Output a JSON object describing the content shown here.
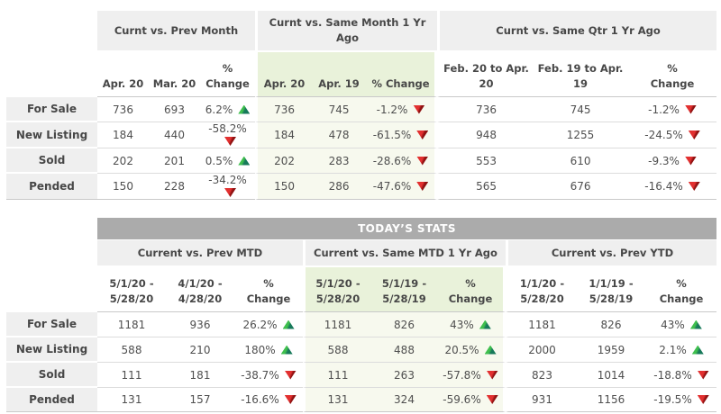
{
  "colors": {
    "group_header_bg": "#efefef",
    "highlight_header_bg": "#e9f2da",
    "highlight_cell_bg": "#f7f9ee",
    "stats_bar_bg": "#ababab",
    "up_arrow": "#2fa84f",
    "down_arrow": "#c32222",
    "text": "#4f4f4f"
  },
  "table1": {
    "groups": [
      {
        "title": "Curnt vs. Prev Month",
        "columns": [
          "Apr. 20",
          "Mar. 20",
          "%\nChange"
        ],
        "highlight": false
      },
      {
        "title": "Curnt vs. Same Month 1 Yr\nAgo",
        "columns": [
          "Apr. 20",
          "Apr. 19",
          "% Change"
        ],
        "highlight": true
      },
      {
        "title": "Curnt vs. Same Qtr 1 Yr Ago",
        "columns": [
          "Feb. 20 to Apr.\n20",
          "Feb. 19 to Apr.\n19",
          "%\nChange"
        ],
        "highlight": false
      }
    ],
    "rows": [
      {
        "label": "For Sale",
        "cells": [
          {
            "v": "736"
          },
          {
            "v": "693"
          },
          {
            "v": "6.2%",
            "dir": "up"
          },
          {
            "v": "736"
          },
          {
            "v": "745"
          },
          {
            "v": "-1.2%",
            "dir": "down"
          },
          {
            "v": "736"
          },
          {
            "v": "745"
          },
          {
            "v": "-1.2%",
            "dir": "down"
          }
        ]
      },
      {
        "label": "New Listing",
        "cells": [
          {
            "v": "184"
          },
          {
            "v": "440"
          },
          {
            "v": "-58.2%",
            "dir": "down"
          },
          {
            "v": "184"
          },
          {
            "v": "478"
          },
          {
            "v": "-61.5%",
            "dir": "down"
          },
          {
            "v": "948"
          },
          {
            "v": "1255"
          },
          {
            "v": "-24.5%",
            "dir": "down"
          }
        ]
      },
      {
        "label": "Sold",
        "cells": [
          {
            "v": "202"
          },
          {
            "v": "201"
          },
          {
            "v": "0.5%",
            "dir": "up"
          },
          {
            "v": "202"
          },
          {
            "v": "283"
          },
          {
            "v": "-28.6%",
            "dir": "down"
          },
          {
            "v": "553"
          },
          {
            "v": "610"
          },
          {
            "v": "-9.3%",
            "dir": "down"
          }
        ]
      },
      {
        "label": "Pended",
        "cells": [
          {
            "v": "150"
          },
          {
            "v": "228"
          },
          {
            "v": "-34.2%",
            "dir": "down"
          },
          {
            "v": "150"
          },
          {
            "v": "286"
          },
          {
            "v": "-47.6%",
            "dir": "down"
          },
          {
            "v": "565"
          },
          {
            "v": "676"
          },
          {
            "v": "-16.4%",
            "dir": "down"
          }
        ]
      }
    ]
  },
  "table2": {
    "title": "TODAY’S STATS",
    "groups": [
      {
        "title": "Current vs. Prev MTD",
        "columns": [
          "5/1/20 -\n5/28/20",
          "4/1/20 -\n4/28/20",
          "%\nChange"
        ],
        "highlight": false
      },
      {
        "title": "Current vs. Same MTD 1 Yr Ago",
        "columns": [
          "5/1/20 -\n5/28/20",
          "5/1/19 -\n5/28/19",
          "%\nChange"
        ],
        "highlight": true
      },
      {
        "title": "Current vs. Prev YTD",
        "columns": [
          "1/1/20 -\n5/28/20",
          "1/1/19 -\n5/28/19",
          "%\nChange"
        ],
        "highlight": false
      }
    ],
    "rows": [
      {
        "label": "For Sale",
        "cells": [
          {
            "v": "1181"
          },
          {
            "v": "936"
          },
          {
            "v": "26.2%",
            "dir": "up"
          },
          {
            "v": "1181"
          },
          {
            "v": "826"
          },
          {
            "v": "43%",
            "dir": "up"
          },
          {
            "v": "1181"
          },
          {
            "v": "826"
          },
          {
            "v": "43%",
            "dir": "up"
          }
        ]
      },
      {
        "label": "New Listing",
        "cells": [
          {
            "v": "588"
          },
          {
            "v": "210"
          },
          {
            "v": "180%",
            "dir": "up"
          },
          {
            "v": "588"
          },
          {
            "v": "488"
          },
          {
            "v": "20.5%",
            "dir": "up"
          },
          {
            "v": "2000"
          },
          {
            "v": "1959"
          },
          {
            "v": "2.1%",
            "dir": "up"
          }
        ]
      },
      {
        "label": "Sold",
        "cells": [
          {
            "v": "111"
          },
          {
            "v": "181"
          },
          {
            "v": "-38.7%",
            "dir": "down"
          },
          {
            "v": "111"
          },
          {
            "v": "263"
          },
          {
            "v": "-57.8%",
            "dir": "down"
          },
          {
            "v": "823"
          },
          {
            "v": "1014"
          },
          {
            "v": "-18.8%",
            "dir": "down"
          }
        ]
      },
      {
        "label": "Pended",
        "cells": [
          {
            "v": "131"
          },
          {
            "v": "157"
          },
          {
            "v": "-16.6%",
            "dir": "down"
          },
          {
            "v": "131"
          },
          {
            "v": "324"
          },
          {
            "v": "-59.6%",
            "dir": "down"
          },
          {
            "v": "931"
          },
          {
            "v": "1156"
          },
          {
            "v": "-19.5%",
            "dir": "down"
          }
        ]
      }
    ]
  }
}
